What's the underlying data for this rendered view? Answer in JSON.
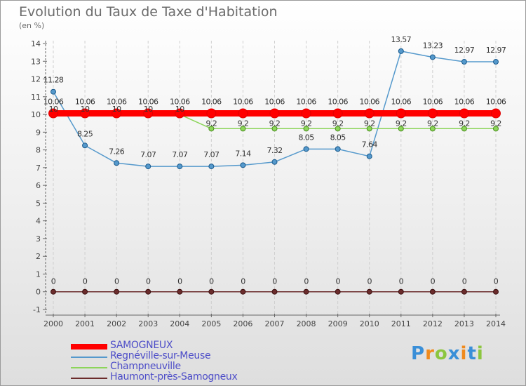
{
  "title": "Evolution du Taux de Taxe d'Habitation",
  "unit_label": "(en %)",
  "brand": {
    "letters": [
      "P",
      "r",
      "o",
      "x",
      "i",
      "t",
      "i"
    ],
    "colors": [
      "#3a8fd8",
      "#f08a1c",
      "#8cc63f",
      "#3a8fd8",
      "#f08a1c",
      "#3a8fd8",
      "#8cc63f"
    ]
  },
  "chart_data": {
    "type": "line",
    "title": "Evolution du Taux de Taxe d'Habitation",
    "ylabel": "(en %)",
    "xlabel": "",
    "x": [
      "2000",
      "2001",
      "2002",
      "2003",
      "2004",
      "2005",
      "2006",
      "2007",
      "2008",
      "2009",
      "2010",
      "2011",
      "2012",
      "2013",
      "2014"
    ],
    "ylim": [
      -1,
      14
    ],
    "yticks": [
      "-1",
      "0",
      "1",
      "2",
      "3",
      "4",
      "5",
      "6",
      "7",
      "8",
      "9",
      "10",
      "11",
      "12",
      "13",
      "14"
    ],
    "grid": "vertical",
    "legend_position": "bottom-left",
    "series": [
      {
        "name": "SAMOGNEUX",
        "color": "#ff0000",
        "values": [
          10.06,
          10.06,
          10.06,
          10.06,
          10.06,
          10.06,
          10.06,
          10.06,
          10.06,
          10.06,
          10.06,
          10.06,
          10.06,
          10.06,
          10.06
        ],
        "labels": [
          "10.06",
          "10.06",
          "10.06",
          "10.06",
          "10.06",
          "10.06",
          "10.06",
          "10.06",
          "10.06",
          "10.06",
          "10.06",
          "10.06",
          "10.06",
          "10.06",
          "10.06"
        ]
      },
      {
        "name": "Regnéville-sur-Meuse",
        "color": "#5599cc",
        "values": [
          11.28,
          8.25,
          7.26,
          7.07,
          7.07,
          7.07,
          7.14,
          7.32,
          8.05,
          8.05,
          7.64,
          13.57,
          13.23,
          12.97,
          12.97
        ],
        "labels": [
          "11.28",
          "8.25",
          "7.26",
          "7.07",
          "7.07",
          "7.07",
          "7.14",
          "7.32",
          "8.05",
          "8.05",
          "7.64",
          "13.57",
          "13.23",
          "12.97",
          "12.97"
        ]
      },
      {
        "name": "Champneuville",
        "color": "#8cd55a",
        "values": [
          10,
          10,
          10,
          10,
          10,
          9.2,
          9.2,
          9.2,
          9.2,
          9.2,
          9.2,
          9.2,
          9.2,
          9.2,
          9.2
        ],
        "labels": [
          "10",
          "10",
          "10",
          "10",
          "10",
          "9.2",
          "9.2",
          "9.2",
          "9.2",
          "9.2",
          "9.2",
          "9.2",
          "9.2",
          "9.2",
          "9.2"
        ]
      },
      {
        "name": "Haumont-près-Samogneux",
        "color": "#6b2c2c",
        "values": [
          0,
          0,
          0,
          0,
          0,
          0,
          0,
          0,
          0,
          0,
          0,
          0,
          0,
          0,
          0
        ],
        "labels": [
          "0",
          "0",
          "0",
          "0",
          "0",
          "0",
          "0",
          "0",
          "0",
          "0",
          "0",
          "0",
          "0",
          "0",
          "0"
        ]
      }
    ]
  }
}
